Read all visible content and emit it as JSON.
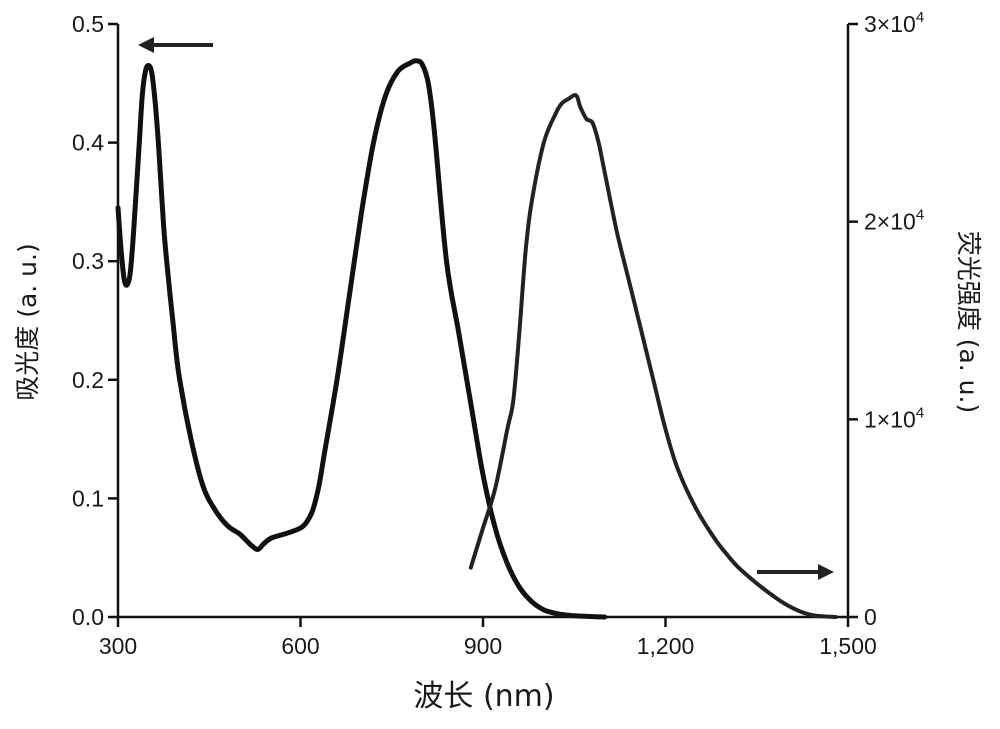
{
  "chart_data": {
    "type": "line",
    "xlabel": "波长 (nm)",
    "ylabel_left": "吸光度 (a. u.)",
    "ylabel_right": "荧光强度 (a. u.)",
    "xlim": [
      300,
      1500
    ],
    "ylim_left": [
      0,
      0.5
    ],
    "ylim_right": [
      0,
      30000
    ],
    "x_ticks": [
      {
        "value": 300,
        "label": "300"
      },
      {
        "value": 600,
        "label": "600"
      },
      {
        "value": 900,
        "label": "900"
      },
      {
        "value": 1200,
        "label": "1,200"
      },
      {
        "value": 1500,
        "label": "1,500"
      }
    ],
    "y_ticks_left": [
      {
        "value": 0.0,
        "label": "0.0"
      },
      {
        "value": 0.1,
        "label": "0.1"
      },
      {
        "value": 0.2,
        "label": "0.2"
      },
      {
        "value": 0.3,
        "label": "0.3"
      },
      {
        "value": 0.4,
        "label": "0.4"
      },
      {
        "value": 0.5,
        "label": "0.5"
      }
    ],
    "y_ticks_right": [
      {
        "value": 0,
        "base": "0",
        "exp": ""
      },
      {
        "value": 10000,
        "base": "1×10",
        "exp": "4"
      },
      {
        "value": 20000,
        "base": "2×10",
        "exp": "4"
      },
      {
        "value": 30000,
        "base": "3×10",
        "exp": "4"
      }
    ],
    "grid": false,
    "series": [
      {
        "axis": "left",
        "x": [
          300,
          305,
          310,
          315,
          320,
          325,
          330,
          335,
          340,
          345,
          350,
          355,
          360,
          365,
          370,
          375,
          380,
          390,
          400,
          420,
          440,
          460,
          480,
          500,
          510,
          520,
          530,
          540,
          550,
          560,
          580,
          600,
          610,
          620,
          630,
          640,
          660,
          680,
          700,
          720,
          740,
          760,
          780,
          790,
          800,
          810,
          820,
          840,
          860,
          880,
          900,
          920,
          940,
          960,
          980,
          1000,
          1020,
          1040,
          1060,
          1080,
          1100
        ],
        "y": [
          0.345,
          0.31,
          0.285,
          0.28,
          0.29,
          0.32,
          0.36,
          0.4,
          0.44,
          0.46,
          0.465,
          0.46,
          0.44,
          0.41,
          0.37,
          0.33,
          0.3,
          0.25,
          0.205,
          0.15,
          0.11,
          0.09,
          0.077,
          0.07,
          0.065,
          0.06,
          0.057,
          0.062,
          0.066,
          0.068,
          0.071,
          0.075,
          0.08,
          0.09,
          0.11,
          0.14,
          0.2,
          0.27,
          0.34,
          0.4,
          0.44,
          0.46,
          0.467,
          0.469,
          0.466,
          0.45,
          0.41,
          0.3,
          0.24,
          0.18,
          0.12,
          0.075,
          0.045,
          0.025,
          0.013,
          0.006,
          0.003,
          0.0015,
          0.0008,
          0.0003,
          0.0
        ]
      },
      {
        "axis": "right",
        "x": [
          880,
          900,
          920,
          940,
          950,
          960,
          970,
          980,
          1000,
          1020,
          1030,
          1040,
          1050,
          1055,
          1060,
          1070,
          1080,
          1090,
          1100,
          1120,
          1140,
          1160,
          1180,
          1200,
          1220,
          1250,
          1280,
          1300,
          1320,
          1350,
          1380,
          1400,
          1420,
          1440,
          1460,
          1480
        ],
        "y": [
          2500,
          4500,
          6500,
          9500,
          11000,
          14500,
          18500,
          21000,
          24000,
          25500,
          26000,
          26200,
          26400,
          26300,
          25800,
          25200,
          25000,
          24000,
          22500,
          19500,
          17000,
          14500,
          12000,
          9500,
          7500,
          5500,
          4000,
          3200,
          2500,
          1700,
          1000,
          600,
          300,
          100,
          30,
          0
        ]
      }
    ]
  }
}
